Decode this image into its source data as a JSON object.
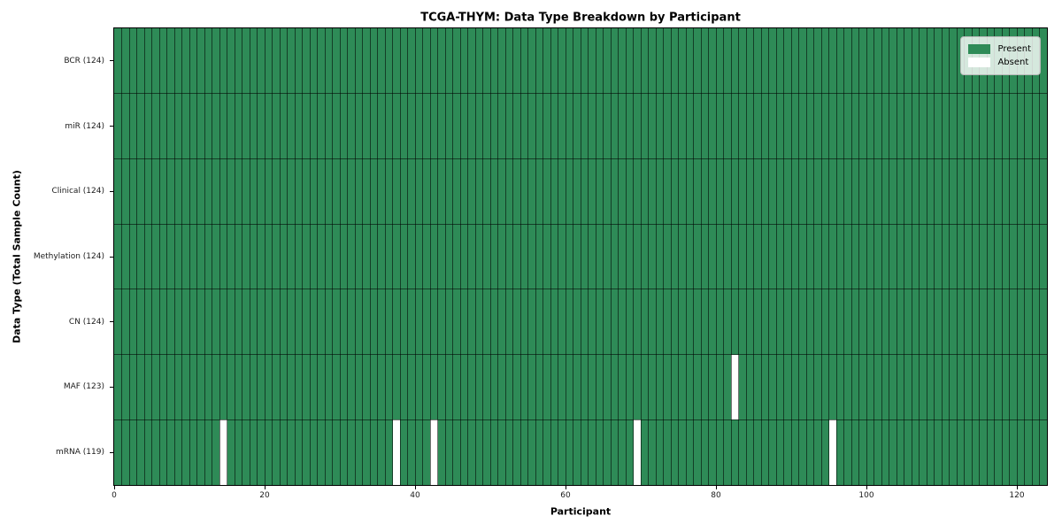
{
  "chart_data": {
    "type": "heatmap",
    "title": "TCGA-THYM: Data Type Breakdown by Participant",
    "xlabel": "Participant",
    "ylabel": "Data Type (Total Sample Count)",
    "n_participants": 124,
    "x_ticks": [
      0,
      20,
      40,
      60,
      80,
      100,
      120
    ],
    "xlim": [
      0,
      124
    ],
    "grid": true,
    "legend_position": "upper right",
    "rows": [
      {
        "label": "BCR (124)",
        "present_count": 124,
        "absent_participants": []
      },
      {
        "label": "miR (124)",
        "present_count": 124,
        "absent_participants": []
      },
      {
        "label": "Clinical (124)",
        "present_count": 124,
        "absent_participants": []
      },
      {
        "label": "Methylation (124)",
        "present_count": 124,
        "absent_participants": []
      },
      {
        "label": "CN (124)",
        "present_count": 124,
        "absent_participants": []
      },
      {
        "label": "MAF (123)",
        "present_count": 123,
        "absent_participants": [
          82
        ]
      },
      {
        "label": "mRNA (119)",
        "present_count": 119,
        "absent_participants": [
          14,
          37,
          42,
          69,
          95
        ]
      }
    ],
    "legend": [
      {
        "label": "Present",
        "color": "#2e8b57"
      },
      {
        "label": "Absent",
        "color": "#ffffff"
      }
    ],
    "colors": {
      "present": "#2e8b57",
      "absent": "#ffffff",
      "grid_line": "rgba(0,0,0,0.55)",
      "spine": "#000000",
      "tick": "#000000"
    }
  }
}
